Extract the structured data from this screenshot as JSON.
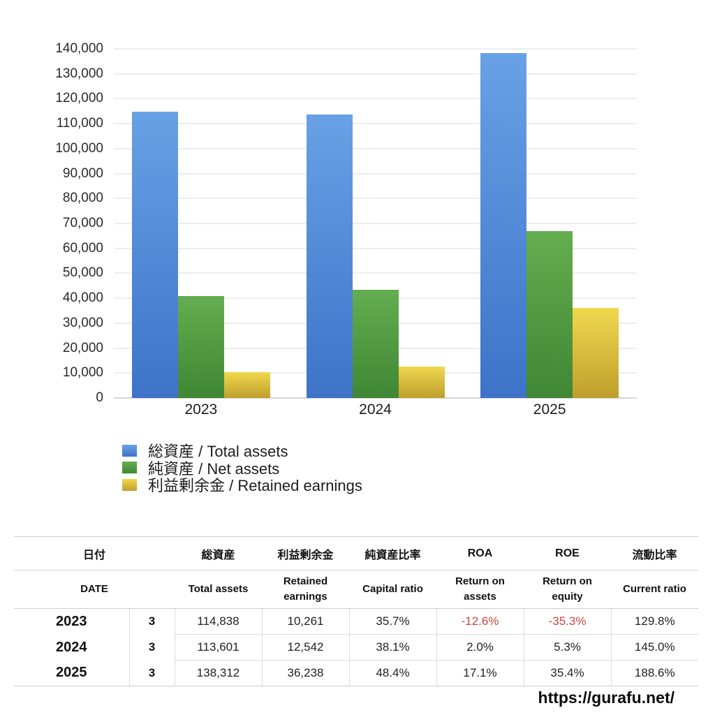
{
  "chart_data": {
    "type": "bar",
    "categories": [
      "2023",
      "2024",
      "2025"
    ],
    "series": [
      {
        "key": "total-assets",
        "name": "総資産 / Total assets",
        "color_top": "#68a1e5",
        "color_bottom": "#3e73c8",
        "values": [
          114838,
          113601,
          138312
        ]
      },
      {
        "key": "net-assets",
        "name": "純資産 / Net assets",
        "color_top": "#64ad50",
        "color_bottom": "#3f8734",
        "values": [
          41000,
          43282,
          66943
        ]
      },
      {
        "key": "retained-earnings",
        "name": "利益剰余金 / Retained earnings",
        "color_top": "#f0d84e",
        "color_bottom": "#bf9f2d",
        "values": [
          10261,
          12542,
          36238
        ]
      }
    ],
    "title": "",
    "xlabel": "",
    "ylabel": "",
    "ylim": [
      0,
      140000
    ],
    "ytick_step": 10000,
    "grid": true,
    "legend_position": "below-left"
  },
  "table": {
    "header_jp": [
      "日付",
      "総資産",
      "利益剰余金",
      "純資産比率",
      "ROA",
      "ROE",
      "流動比率"
    ],
    "header_en": [
      "DATE",
      "Total assets",
      "Retained earnings",
      "Capital ratio",
      "Return on assets",
      "Return on equity",
      "Current ratio"
    ],
    "rows": [
      {
        "year": "2023",
        "month": "3",
        "total_assets": "114,838",
        "retained_earnings": "10,261",
        "capital_ratio": "35.7%",
        "roa": "-12.6%",
        "roe": "-35.3%",
        "current_ratio": "129.8%"
      },
      {
        "year": "2024",
        "month": "3",
        "total_assets": "113,601",
        "retained_earnings": "12,542",
        "capital_ratio": "38.1%",
        "roa": "2.0%",
        "roe": "5.3%",
        "current_ratio": "145.0%"
      },
      {
        "year": "2025",
        "month": "3",
        "total_assets": "138,312",
        "retained_earnings": "36,238",
        "capital_ratio": "48.4%",
        "roa": "17.1%",
        "roe": "35.4%",
        "current_ratio": "188.6%"
      }
    ],
    "negative_color": "#c9463c"
  },
  "footer": {
    "url": "https://gurafu.net/"
  }
}
